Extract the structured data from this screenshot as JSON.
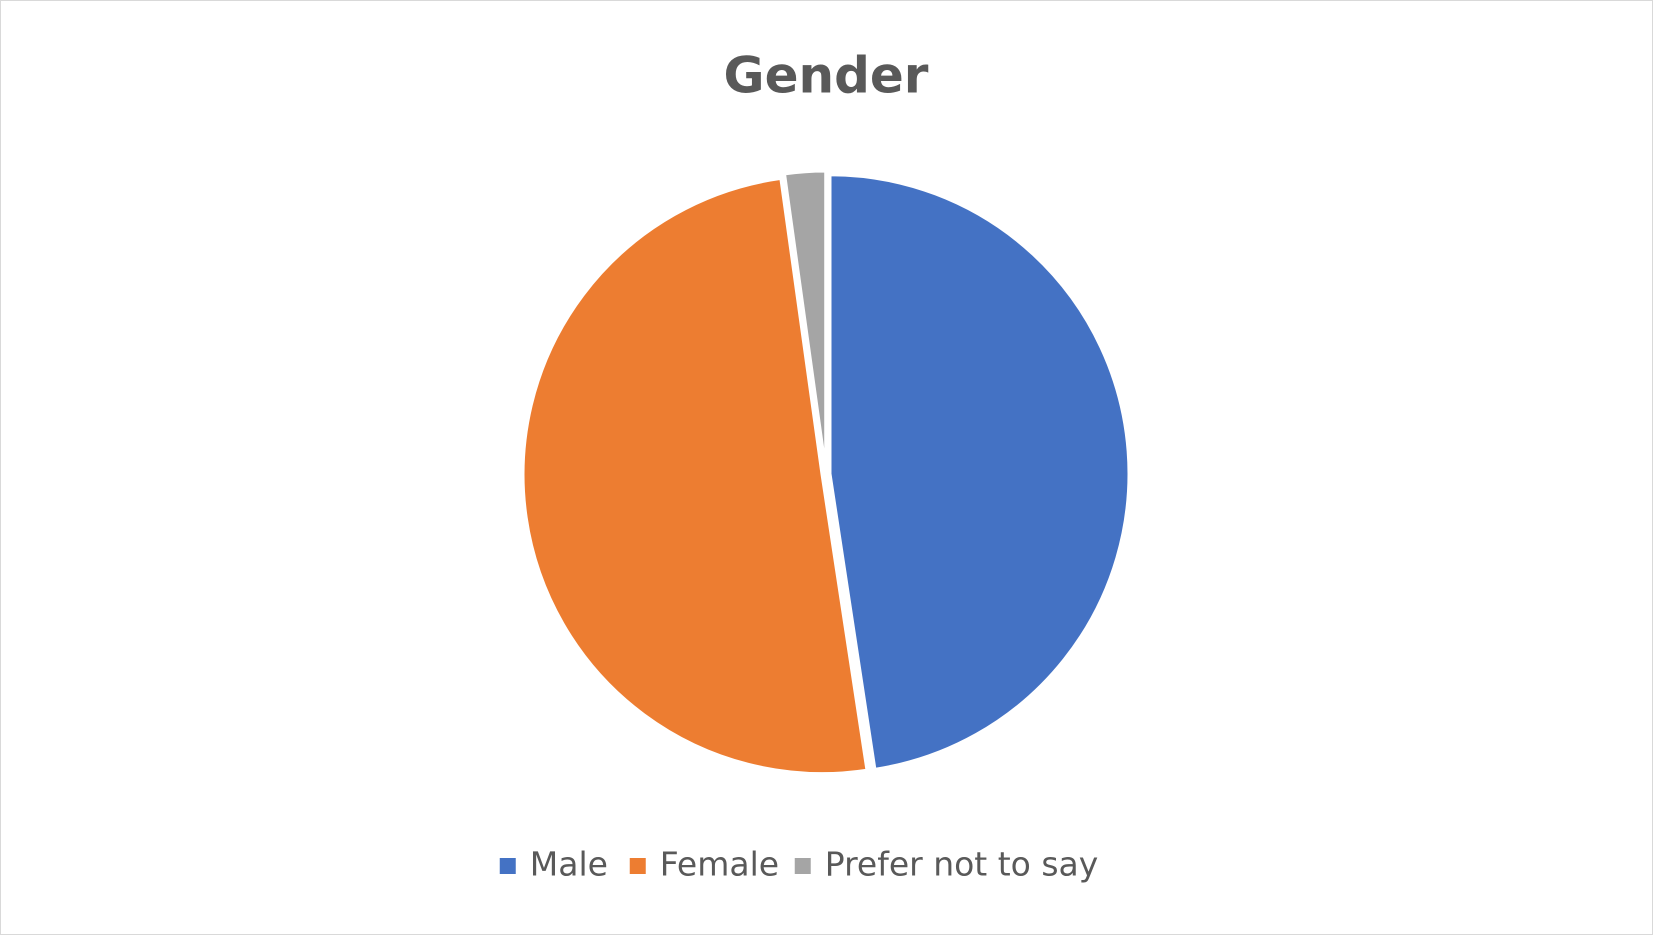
{
  "chart_data": {
    "type": "pie",
    "title": "Gender",
    "categories": [
      "Male",
      "Female",
      "Prefer not to say"
    ],
    "values": [
      47.6,
      50.2,
      2.2
    ],
    "colors": [
      "#4472c4",
      "#ed7d31",
      "#a5a5a5"
    ],
    "legend": "bottom"
  }
}
